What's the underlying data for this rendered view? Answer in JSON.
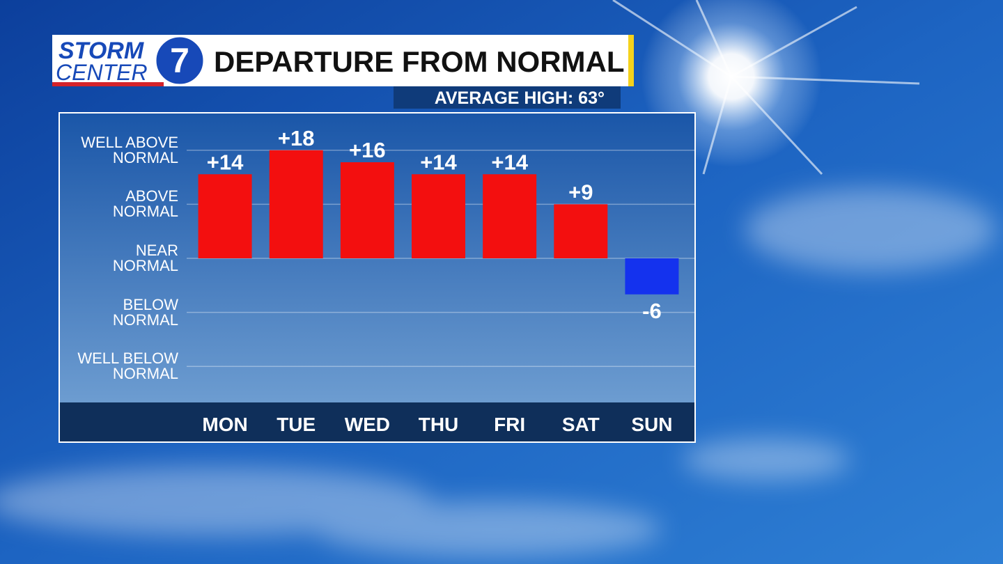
{
  "logo": {
    "line1": "STORM",
    "line2": "CENTER",
    "number": "7"
  },
  "chart_data": {
    "type": "bar",
    "title": "DEPARTURE FROM NORMAL",
    "subtitle": "AVERAGE HIGH: 63°",
    "categories": [
      "MON",
      "TUE",
      "WED",
      "THU",
      "FRI",
      "SAT",
      "SUN"
    ],
    "values": [
      14,
      18,
      16,
      14,
      14,
      9,
      -6
    ],
    "value_labels": [
      "+14",
      "+18",
      "+16",
      "+14",
      "+14",
      "+9",
      "-6"
    ],
    "color_positive": "#f30f0f",
    "color_negative": "#1432ee",
    "ylim": [
      -24,
      24
    ],
    "yticks": [
      {
        "value": 18,
        "label": "WELL ABOVE\nNORMAL"
      },
      {
        "value": 9,
        "label": "ABOVE\nNORMAL"
      },
      {
        "value": 0,
        "label": "NEAR\nNORMAL"
      },
      {
        "value": -9,
        "label": "BELOW\nNORMAL"
      },
      {
        "value": -18,
        "label": "WELL BELOW\nNORMAL"
      }
    ],
    "grid": true
  }
}
